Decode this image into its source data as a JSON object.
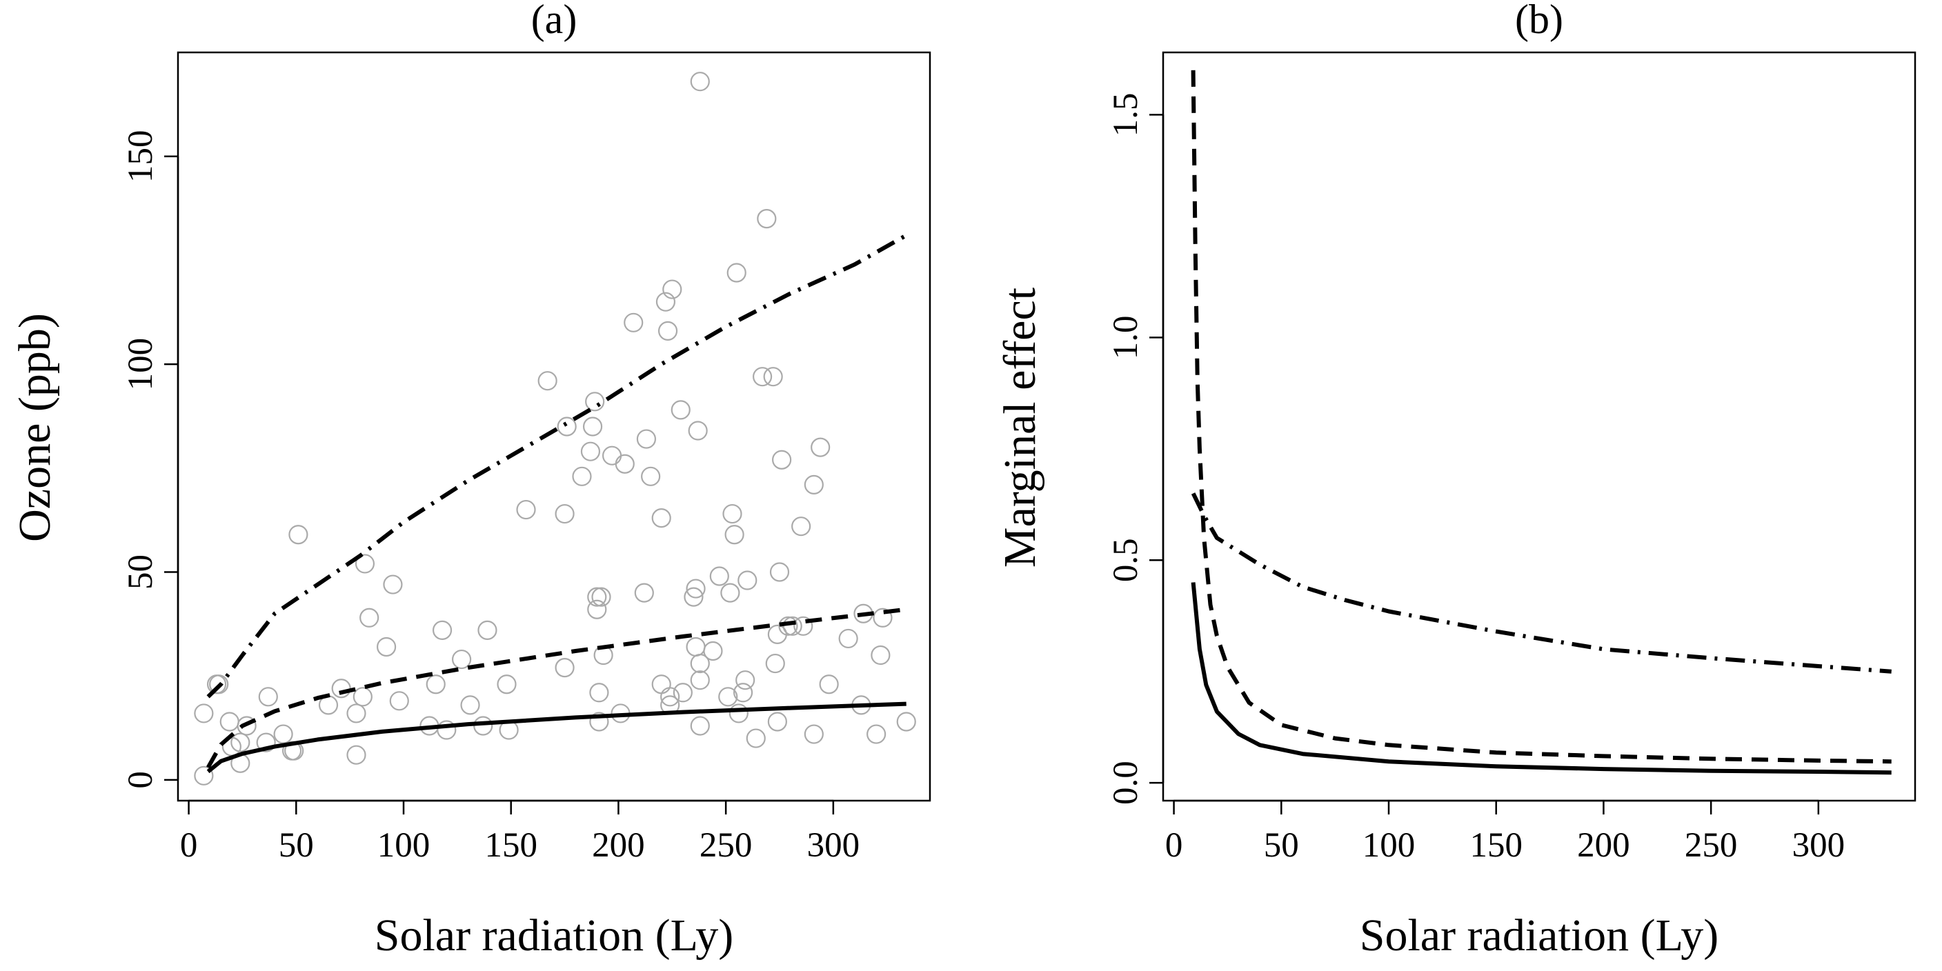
{
  "chart_data": [
    {
      "type": "scatter",
      "title": "(a)",
      "xlabel": "Solar radiation (Ly)",
      "ylabel": "Ozone (ppb)",
      "xlim": [
        -5,
        345
      ],
      "ylim": [
        -5,
        175
      ],
      "xticks": [
        "0",
        "50",
        "100",
        "150",
        "200",
        "250",
        "300"
      ],
      "yticks": [
        "0",
        "50",
        "100",
        "150"
      ],
      "grid": false,
      "points_color": "#aaaaaa",
      "points": [
        [
          7,
          1
        ],
        [
          7,
          16
        ],
        [
          13,
          23
        ],
        [
          14,
          23
        ],
        [
          19,
          14
        ],
        [
          20,
          8
        ],
        [
          24,
          4
        ],
        [
          24,
          9
        ],
        [
          27,
          13
        ],
        [
          36,
          9
        ],
        [
          37,
          20
        ],
        [
          44,
          11
        ],
        [
          48,
          7
        ],
        [
          49,
          7
        ],
        [
          51,
          59
        ],
        [
          65,
          18
        ],
        [
          71,
          22
        ],
        [
          78,
          16
        ],
        [
          78,
          6
        ],
        [
          81,
          20
        ],
        [
          82,
          52
        ],
        [
          84,
          39
        ],
        [
          92,
          32
        ],
        [
          95,
          47
        ],
        [
          98,
          19
        ],
        [
          112,
          13
        ],
        [
          115,
          23
        ],
        [
          118,
          36
        ],
        [
          120,
          12
        ],
        [
          127,
          29
        ],
        [
          131,
          18
        ],
        [
          137,
          13
        ],
        [
          139,
          36
        ],
        [
          148,
          23
        ],
        [
          149,
          12
        ],
        [
          157,
          65
        ],
        [
          167,
          96
        ],
        [
          175,
          27
        ],
        [
          175,
          64
        ],
        [
          176,
          85
        ],
        [
          183,
          73
        ],
        [
          187,
          79
        ],
        [
          188,
          85
        ],
        [
          189,
          91
        ],
        [
          190,
          41
        ],
        [
          190,
          44
        ],
        [
          191,
          14
        ],
        [
          191,
          21
        ],
        [
          192,
          44
        ],
        [
          193,
          30
        ],
        [
          197,
          78
        ],
        [
          201,
          16
        ],
        [
          203,
          76
        ],
        [
          207,
          110
        ],
        [
          212,
          45
        ],
        [
          213,
          82
        ],
        [
          215,
          73
        ],
        [
          220,
          23
        ],
        [
          220,
          63
        ],
        [
          222,
          115
        ],
        [
          223,
          108
        ],
        [
          224,
          18
        ],
        [
          224,
          20
        ],
        [
          225,
          118
        ],
        [
          229,
          89
        ],
        [
          230,
          21
        ],
        [
          235,
          44
        ],
        [
          236,
          32
        ],
        [
          236,
          46
        ],
        [
          237,
          84
        ],
        [
          238,
          13
        ],
        [
          238,
          24
        ],
        [
          238,
          28
        ],
        [
          238,
          168
        ],
        [
          244,
          31
        ],
        [
          247,
          49
        ],
        [
          251,
          20
        ],
        [
          252,
          45
        ],
        [
          253,
          64
        ],
        [
          254,
          59
        ],
        [
          255,
          122
        ],
        [
          256,
          16
        ],
        [
          258,
          21
        ],
        [
          259,
          24
        ],
        [
          260,
          48
        ],
        [
          264,
          10
        ],
        [
          267,
          97
        ],
        [
          269,
          135
        ],
        [
          272,
          97
        ],
        [
          273,
          28
        ],
        [
          274,
          14
        ],
        [
          274,
          35
        ],
        [
          275,
          50
        ],
        [
          276,
          77
        ],
        [
          279,
          37
        ],
        [
          281,
          37
        ],
        [
          285,
          61
        ],
        [
          286,
          37
        ],
        [
          291,
          11
        ],
        [
          291,
          71
        ],
        [
          294,
          80
        ],
        [
          298,
          23
        ],
        [
          307,
          34
        ],
        [
          313,
          18
        ],
        [
          314,
          40
        ],
        [
          320,
          11
        ],
        [
          322,
          30
        ],
        [
          323,
          39
        ],
        [
          334,
          14
        ]
      ],
      "series": [
        {
          "values": [
            [
              9,
              2
            ],
            [
              15,
              4.5
            ],
            [
              25,
              6.3
            ],
            [
              40,
              8.0
            ],
            [
              60,
              9.7
            ],
            [
              90,
              11.6
            ],
            [
              130,
              13.4
            ],
            [
              180,
              15.0
            ],
            [
              230,
              16.3
            ],
            [
              280,
              17.3
            ],
            [
              334,
              18.3
            ]
          ]
        },
        {
          "values": [
            [
              9,
              3
            ],
            [
              15,
              8.5
            ],
            [
              25,
              13.0
            ],
            [
              40,
              16.5
            ],
            [
              60,
              19.7
            ],
            [
              90,
              23.3
            ],
            [
              130,
              27.0
            ],
            [
              180,
              31.0
            ],
            [
              230,
              34.5
            ],
            [
              280,
              37.7
            ],
            [
              334,
              41.0
            ]
          ]
        },
        {
          "values": [
            [
              9,
              20
            ],
            [
              15,
              23
            ],
            [
              25,
              30
            ],
            [
              40,
              40
            ],
            [
              60,
              47
            ],
            [
              80,
              54
            ],
            [
              100,
              62
            ],
            [
              130,
              72
            ],
            [
              160,
              81
            ],
            [
              190,
              90
            ],
            [
              220,
              100
            ],
            [
              250,
              109
            ],
            [
              280,
              117
            ],
            [
              310,
              124
            ],
            [
              334,
              131
            ]
          ]
        }
      ]
    },
    {
      "type": "line",
      "title": "(b)",
      "xlabel": "Solar radiation (Ly)",
      "ylabel": "Marginal effect",
      "xlim": [
        -5,
        345
      ],
      "ylim": [
        -0.04,
        1.64
      ],
      "xticks": [
        "0",
        "50",
        "100",
        "150",
        "200",
        "250",
        "300"
      ],
      "yticks": [
        "0.0",
        "0.5",
        "1.0",
        "1.5"
      ],
      "grid": false,
      "series": [
        {
          "values": [
            [
              9,
              0.45
            ],
            [
              12,
              0.3
            ],
            [
              15,
              0.22
            ],
            [
              20,
              0.16
            ],
            [
              30,
              0.11
            ],
            [
              40,
              0.085
            ],
            [
              60,
              0.065
            ],
            [
              100,
              0.048
            ],
            [
              150,
              0.037
            ],
            [
              200,
              0.031
            ],
            [
              250,
              0.027
            ],
            [
              300,
              0.025
            ],
            [
              334,
              0.023
            ]
          ]
        },
        {
          "values": [
            [
              9,
              1.6
            ],
            [
              10,
              1.2
            ],
            [
              11,
              0.9
            ],
            [
              12,
              0.75
            ],
            [
              14,
              0.55
            ],
            [
              17,
              0.4
            ],
            [
              20,
              0.33
            ],
            [
              25,
              0.26
            ],
            [
              35,
              0.18
            ],
            [
              50,
              0.13
            ],
            [
              75,
              0.1
            ],
            [
              100,
              0.085
            ],
            [
              150,
              0.068
            ],
            [
              200,
              0.06
            ],
            [
              250,
              0.054
            ],
            [
              300,
              0.05
            ],
            [
              334,
              0.048
            ]
          ]
        },
        {
          "values": [
            [
              9,
              0.65
            ],
            [
              14,
              0.6
            ],
            [
              20,
              0.55
            ],
            [
              40,
              0.49
            ],
            [
              60,
              0.44
            ],
            [
              80,
              0.41
            ],
            [
              100,
              0.385
            ],
            [
              150,
              0.34
            ],
            [
              200,
              0.3
            ],
            [
              250,
              0.28
            ],
            [
              300,
              0.262
            ],
            [
              334,
              0.25
            ]
          ]
        }
      ]
    }
  ]
}
